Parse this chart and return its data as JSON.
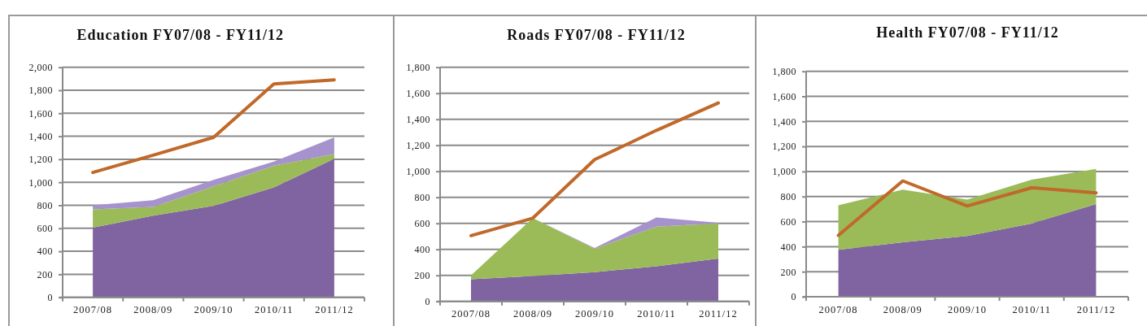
{
  "chart_data": [
    {
      "type": "area",
      "title": "Education FY07/08 - FY11/12",
      "categories": [
        "2007/08",
        "2008/09",
        "2009/10",
        "2010/11",
        "2011/12"
      ],
      "stacked": true,
      "grid": "y",
      "series": [
        {
          "color": "#8064a2",
          "values": [
            605,
            710,
            795,
            955,
            1205
          ]
        },
        {
          "color": "#9bbb59",
          "values": [
            160,
            75,
            170,
            190,
            40
          ]
        },
        {
          "color": "#a692cc",
          "values": [
            35,
            60,
            55,
            35,
            145
          ]
        },
        {
          "type": "line",
          "color": "#c0692a",
          "values": [
            1085,
            1235,
            1390,
            1855,
            1890
          ]
        }
      ],
      "ylim": [
        0,
        2000
      ],
      "yticks": [
        0,
        200,
        400,
        600,
        800,
        {
          "value": 1000,
          "label": "1,000"
        },
        {
          "value": 1200,
          "label": "1,200"
        },
        {
          "value": 1400,
          "label": "1,400"
        },
        {
          "value": 1600,
          "label": "1,600"
        },
        {
          "value": 1800,
          "label": "1,800"
        },
        {
          "value": 2000,
          "label": "2,000"
        }
      ]
    },
    {
      "type": "area",
      "title": "Roads FY07/08 - FY11/12",
      "categories": [
        "2007/08",
        "2008/09",
        "2009/10",
        "2010/11",
        "2011/12"
      ],
      "stacked": true,
      "grid": "y",
      "series": [
        {
          "color": "#8064a2",
          "values": [
            170,
            195,
            225,
            270,
            330
          ]
        },
        {
          "color": "#9bbb59",
          "values": [
            30,
            445,
            180,
            305,
            270
          ]
        },
        {
          "color": "#a692cc",
          "values": [
            0,
            0,
            5,
            70,
            5
          ]
        },
        {
          "type": "line",
          "color": "#c0692a",
          "values": [
            505,
            640,
            1090,
            1315,
            1525
          ]
        }
      ],
      "ylim": [
        0,
        1800
      ],
      "yticks": [
        0,
        200,
        400,
        600,
        800,
        {
          "value": 1000,
          "label": "1,000"
        },
        {
          "value": 1200,
          "label": "1,200"
        },
        {
          "value": 1400,
          "label": "1,400"
        },
        {
          "value": 1600,
          "label": "1,600"
        },
        {
          "value": 1800,
          "label": "1,800"
        }
      ]
    },
    {
      "type": "area",
      "title": "Health FY07/08 - FY11/12",
      "categories": [
        "2007/08",
        "2008/09",
        "2009/10",
        "2010/11",
        "2011/12"
      ],
      "stacked": true,
      "grid": "y",
      "series": [
        {
          "color": "#8064a2",
          "values": [
            375,
            435,
            485,
            585,
            740
          ]
        },
        {
          "color": "#9bbb59",
          "values": [
            355,
            420,
            290,
            350,
            280
          ]
        },
        {
          "type": "line",
          "color": "#c0692a",
          "values": [
            490,
            925,
            725,
            870,
            830
          ]
        }
      ],
      "ylim": [
        0,
        1800
      ],
      "yticks": [
        0,
        200,
        400,
        600,
        800,
        {
          "value": 1000,
          "label": "1,000"
        },
        {
          "value": 1200,
          "label": "1,200"
        },
        {
          "value": 1400,
          "label": "1,400"
        },
        {
          "value": 1600,
          "label": "1,600"
        },
        {
          "value": 1800,
          "label": "1,800"
        }
      ]
    }
  ]
}
